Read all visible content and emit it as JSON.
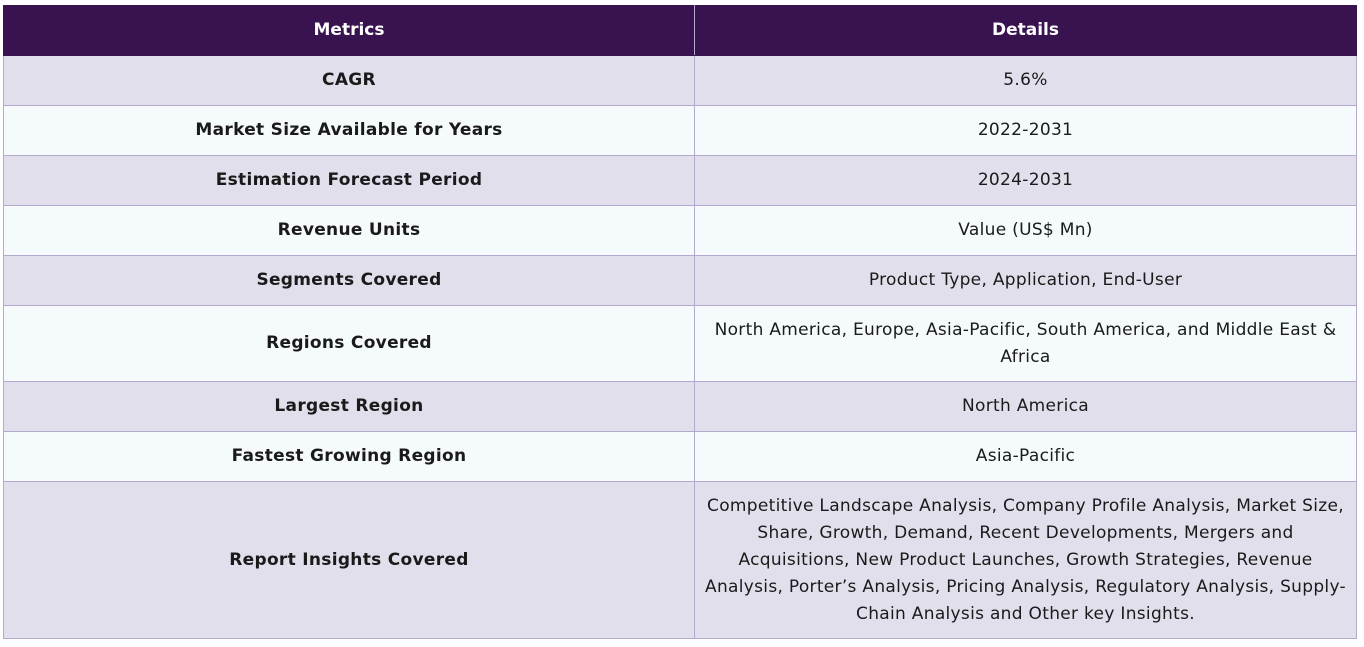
{
  "table": {
    "headers": {
      "metric": "Metrics",
      "detail": "Details"
    },
    "rows": [
      {
        "metric": "CAGR",
        "detail": "5.6%"
      },
      {
        "metric": "Market Size Available for Years",
        "detail": "2022-2031"
      },
      {
        "metric": "Estimation Forecast Period",
        "detail": "2024-2031"
      },
      {
        "metric": "Revenue Units",
        "detail": "Value (US$ Mn)"
      },
      {
        "metric": "Segments Covered",
        "detail": "Product Type, Application, End-User"
      },
      {
        "metric": "Regions Covered",
        "detail": "North America, Europe, Asia-Pacific, South America, and Middle East & Africa"
      },
      {
        "metric": "Largest Region",
        "detail": "North America"
      },
      {
        "metric": "Fastest Growing Region",
        "detail": "Asia-Pacific"
      },
      {
        "metric": "Report Insights Covered",
        "detail": "Competitive Landscape Analysis, Company Profile Analysis, Market Size, Share, Growth, Demand, Recent Developments, Mergers and Acquisitions, New Product Launches, Growth Strategies, Revenue Analysis, Porter’s Analysis, Pricing Analysis, Regulatory Analysis, Supply-Chain Analysis and Other key Insights."
      }
    ]
  },
  "colors": {
    "header_bg": "#381350",
    "header_text": "#ffffff",
    "row_odd_bg": "#e1dfeb",
    "row_even_bg": "#f5fafd",
    "border": "#b3a9cf"
  }
}
